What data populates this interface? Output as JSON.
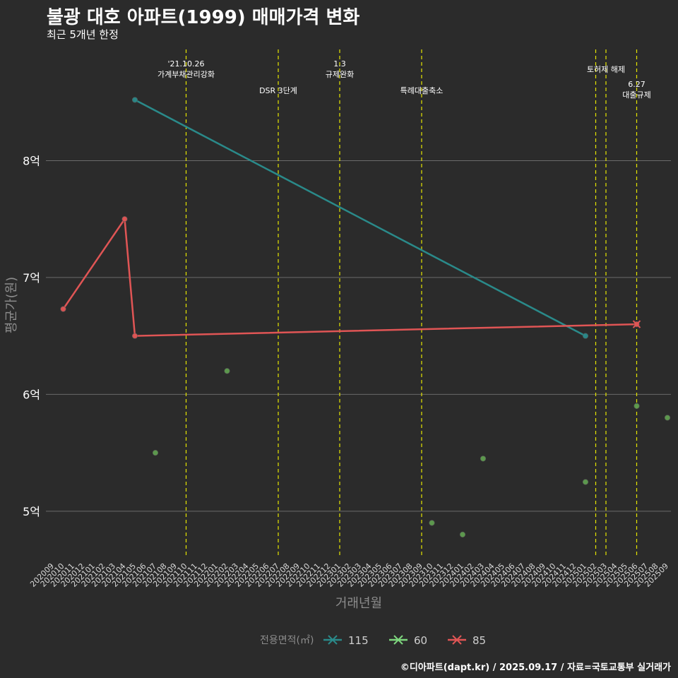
{
  "header": {
    "title": "불광 대호 아파트(1999) 매매가격 변화",
    "subtitle": "최근 5개년 한정",
    "caption": "©디아파트(dapt.kr) / 2025.09.17 / 자료=국토교통부 실거래가"
  },
  "chart_data": {
    "type": "line",
    "xlabel": "거래년월",
    "ylabel": "평균가(원)",
    "x_categories": [
      "202009",
      "202010",
      "202011",
      "202012",
      "202101",
      "202102",
      "202103",
      "202104",
      "202105",
      "202106",
      "202107",
      "202108",
      "202109",
      "202110",
      "202111",
      "202112",
      "202201",
      "202202",
      "202203",
      "202204",
      "202205",
      "202206",
      "202207",
      "202208",
      "202209",
      "202210",
      "202211",
      "202212",
      "202301",
      "202302",
      "202303",
      "202304",
      "202305",
      "202306",
      "202307",
      "202308",
      "202309",
      "202310",
      "202311",
      "202312",
      "202401",
      "202402",
      "202403",
      "202404",
      "202405",
      "202406",
      "202407",
      "202408",
      "202409",
      "202410",
      "202411",
      "202412",
      "202501",
      "202502",
      "202503",
      "202504",
      "202505",
      "202506",
      "202507",
      "202508",
      "202509"
    ],
    "y_ticks": [
      {
        "value": 500000000,
        "label": "5억"
      },
      {
        "value": 600000000,
        "label": "6억"
      },
      {
        "value": 700000000,
        "label": "7억"
      },
      {
        "value": 800000000,
        "label": "8억"
      }
    ],
    "ylim": [
      460000000,
      900000000
    ],
    "grid": true,
    "legend": {
      "title": "전용면적(㎡)",
      "position": "bottom",
      "items": [
        {
          "label": "115",
          "color": "#2a8a8a"
        },
        {
          "label": "60",
          "color": "#7dd67d"
        },
        {
          "label": "85",
          "color": "#e05555"
        }
      ]
    },
    "series": [
      {
        "name": "115",
        "color": "#2a8a8a",
        "style": "line",
        "points": [
          {
            "x": "202105",
            "y": 852000000
          },
          {
            "x": "202501",
            "y": 650000000
          }
        ]
      },
      {
        "name": "60",
        "color": "#5f9e4f",
        "style": "points",
        "points": [
          {
            "x": "202107",
            "y": 550000000
          },
          {
            "x": "202202",
            "y": 620000000
          },
          {
            "x": "202310",
            "y": 490000000
          },
          {
            "x": "202401",
            "y": 480000000
          },
          {
            "x": "202403",
            "y": 545000000
          },
          {
            "x": "202501",
            "y": 525000000
          },
          {
            "x": "202506",
            "y": 590000000
          },
          {
            "x": "202509",
            "y": 580000000
          }
        ]
      },
      {
        "name": "85",
        "color": "#e05555",
        "style": "line",
        "points": [
          {
            "x": "202010",
            "y": 673000000
          },
          {
            "x": "202104",
            "y": 750000000
          },
          {
            "x": "202105",
            "y": 650000000
          },
          {
            "x": "202506",
            "y": 660000000
          }
        ]
      }
    ],
    "latest_marker": {
      "x": "202506",
      "y": 660000000,
      "color": "#e05555"
    },
    "events": [
      {
        "x": "202110",
        "lines": [
          "'21.10.26",
          "가계부채관리강화"
        ],
        "row": "upper"
      },
      {
        "x": "202207",
        "lines": [
          "DSR 3단계"
        ],
        "row": "lower"
      },
      {
        "x": "202301",
        "lines": [
          "1.3",
          "규제완화"
        ],
        "row": "upper"
      },
      {
        "x": "202309",
        "lines": [
          "특례대출축소"
        ],
        "row": "lower"
      },
      {
        "x": "202502",
        "lines": [],
        "row": "upper"
      },
      {
        "x": "202503",
        "lines": [
          "토허제 해제"
        ],
        "row": "middle"
      },
      {
        "x": "202506",
        "lines": [
          "6.27",
          "대출규제"
        ],
        "row": "low2"
      }
    ],
    "event_line_color": "#e6e600"
  }
}
